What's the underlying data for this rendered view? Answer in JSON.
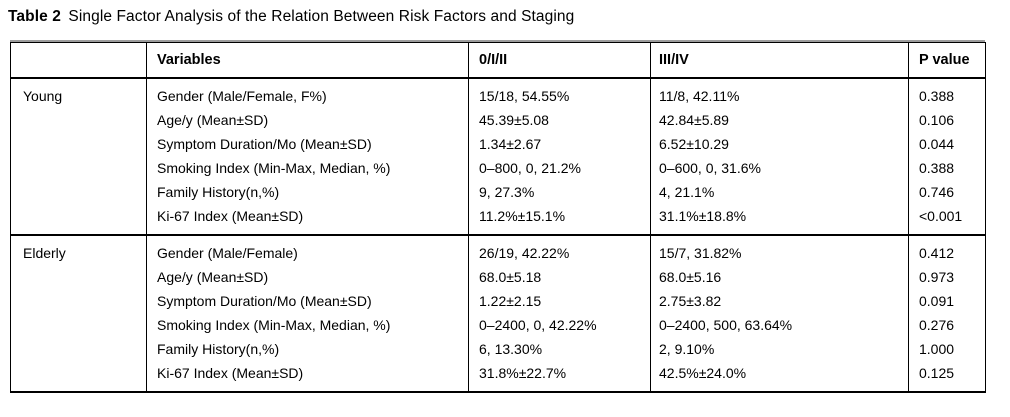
{
  "title": {
    "label": "Table 2",
    "text": "Single Factor Analysis of the Relation Between Risk Factors and Staging"
  },
  "table": {
    "columns": [
      "",
      "Variables",
      "0/I/II",
      "III/IV",
      "P value"
    ],
    "groups": [
      {
        "name": "Young",
        "rows": [
          {
            "variable": "Gender (Male/Female, F%)",
            "c1": "15/18, 54.55%",
            "c2": "11/8, 42.11%",
            "p": "0.388"
          },
          {
            "variable": "Age/y (Mean±SD)",
            "c1": "45.39±5.08",
            "c2": "42.84±5.89",
            "p": "0.106"
          },
          {
            "variable": "Symptom Duration/Mo (Mean±SD)",
            "c1": "1.34±2.67",
            "c2": "6.52±10.29",
            "p": "0.044"
          },
          {
            "variable": "Smoking Index (Min-Max, Median, %)",
            "c1": "0–800, 0, 21.2%",
            "c2": "0–600, 0, 31.6%",
            "p": "0.388"
          },
          {
            "variable": "Family History(n,%)",
            "c1": "9, 27.3%",
            "c2": "4, 21.1%",
            "p": "0.746"
          },
          {
            "variable": "Ki-67 Index (Mean±SD)",
            "c1": "11.2%±15.1%",
            "c2": "31.1%±18.8%",
            "p": "<0.001"
          }
        ]
      },
      {
        "name": "Elderly",
        "rows": [
          {
            "variable": "Gender (Male/Female)",
            "c1": "26/19, 42.22%",
            "c2": "15/7, 31.82%",
            "p": "0.412"
          },
          {
            "variable": "Age/y (Mean±SD)",
            "c1": "68.0±5.18",
            "c2": "68.0±5.16",
            "p": "0.973"
          },
          {
            "variable": "Symptom Duration/Mo (Mean±SD)",
            "c1": "1.22±2.15",
            "c2": "2.75±3.82",
            "p": "0.091"
          },
          {
            "variable": "Smoking Index (Min-Max, Median, %)",
            "c1": "0–2400, 0, 42.22%",
            "c2": "0–2400, 500, 63.64%",
            "p": "0.276"
          },
          {
            "variable": "Family History(n,%)",
            "c1": "6, 13.30%",
            "c2": "2, 9.10%",
            "p": "1.000"
          },
          {
            "variable": "Ki-67 Index (Mean±SD)",
            "c1": "31.8%±22.7%",
            "c2": "42.5%±24.0%",
            "p": "0.125"
          }
        ]
      }
    ]
  }
}
